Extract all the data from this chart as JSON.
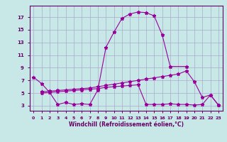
{
  "xlabel": "Windchill (Refroidissement éolien,°C)",
  "background_color": "#c8e8e8",
  "grid_color": "#aaaacc",
  "line_color": "#990099",
  "line1_x": [
    0,
    1,
    2,
    3,
    4,
    5,
    6,
    7,
    8,
    9,
    10,
    11,
    12,
    13,
    14,
    15,
    16,
    17,
    19
  ],
  "line1_y": [
    7.5,
    6.5,
    5.1,
    3.2,
    3.5,
    3.2,
    3.3,
    3.2,
    5.5,
    12.2,
    14.6,
    16.8,
    17.5,
    17.8,
    17.7,
    17.2,
    14.2,
    9.2,
    9.2
  ],
  "line2_x": [
    1,
    2,
    3,
    4,
    5,
    6,
    7,
    8,
    9,
    10,
    11,
    12,
    13,
    14,
    15,
    16,
    17,
    18,
    19,
    20,
    21,
    22,
    23
  ],
  "line2_y": [
    5.2,
    5.3,
    5.4,
    5.5,
    5.6,
    5.7,
    5.8,
    6.0,
    6.2,
    6.4,
    6.6,
    6.8,
    7.0,
    7.2,
    7.4,
    7.6,
    7.8,
    8.0,
    8.5,
    6.8,
    4.3,
    4.7,
    3.1
  ],
  "line3_x": [
    1,
    2,
    3,
    4,
    5,
    6,
    7,
    8,
    9,
    10,
    11,
    12,
    13,
    14,
    15,
    16,
    17,
    18,
    19,
    20,
    21,
    22,
    23
  ],
  "line3_y": [
    5.0,
    5.1,
    5.2,
    5.3,
    5.4,
    5.5,
    5.6,
    5.7,
    5.9,
    6.0,
    6.1,
    6.2,
    6.3,
    3.2,
    3.2,
    3.2,
    3.3,
    3.2,
    3.2,
    3.1,
    3.2,
    4.7,
    3.1
  ],
  "xlim": [
    -0.5,
    23.5
  ],
  "ylim": [
    2.2,
    18.8
  ],
  "yticks": [
    3,
    5,
    7,
    9,
    11,
    13,
    15,
    17
  ],
  "xticks": [
    0,
    1,
    2,
    3,
    4,
    5,
    6,
    7,
    8,
    9,
    10,
    11,
    12,
    13,
    14,
    15,
    16,
    17,
    18,
    19,
    20,
    21,
    22,
    23
  ]
}
